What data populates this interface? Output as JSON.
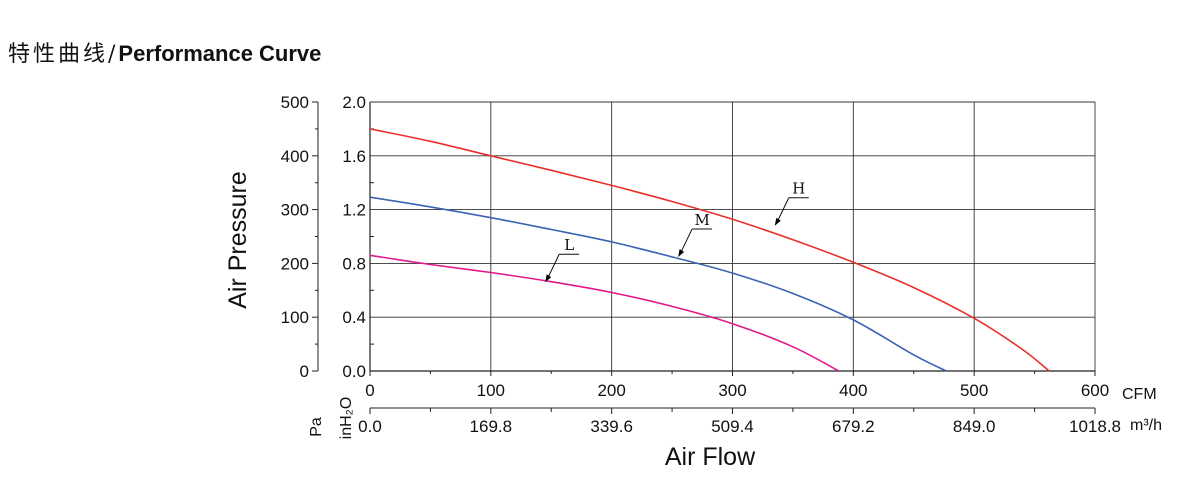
{
  "header": {
    "title_cn": "特性曲线/",
    "title_en": "Performance Curve"
  },
  "chart_data": {
    "type": "line",
    "xlabel": "Air Flow",
    "ylabel": "Air Pressure",
    "x_unit_primary": "CFM",
    "x_unit_secondary": "m³/h",
    "y_unit_left": "Pa",
    "y_unit_inner": "inH₂O",
    "xlim": [
      0,
      600
    ],
    "ylim": [
      0,
      500
    ],
    "x_ticks_cfm": [
      "0",
      "100",
      "200",
      "300",
      "400",
      "500",
      "600"
    ],
    "x_ticks_m3h": [
      "0.0",
      "169.8",
      "339.6",
      "509.4",
      "679.2",
      "849.0",
      "1018.8"
    ],
    "y_ticks_pa": [
      "0",
      "100",
      "200",
      "300",
      "400",
      "500"
    ],
    "y_ticks_inh2o": [
      "0.0",
      "0.4",
      "0.8",
      "1.2",
      "1.6",
      "2.0"
    ],
    "grid": true,
    "series": [
      {
        "name": "H",
        "color": "#e8302a",
        "x": [
          0,
          50,
          100,
          150,
          200,
          250,
          300,
          350,
          400,
          450,
          500,
          540,
          562
        ],
        "y": [
          450,
          427,
          400,
          373,
          345,
          315,
          282,
          244,
          202,
          155,
          98,
          40,
          0
        ]
      },
      {
        "name": "M",
        "color": "#3b63b3",
        "x": [
          0,
          50,
          100,
          150,
          200,
          250,
          300,
          350,
          400,
          450,
          477
        ],
        "y": [
          323,
          305,
          285,
          263,
          240,
          212,
          182,
          144,
          95,
          30,
          0
        ]
      },
      {
        "name": "L",
        "color": "#e0198a",
        "x": [
          0,
          50,
          100,
          150,
          200,
          250,
          300,
          350,
          388
        ],
        "y": [
          215,
          198,
          183,
          166,
          146,
          120,
          88,
          45,
          0
        ]
      }
    ],
    "annotations": [
      {
        "series": "H",
        "label": "H",
        "x": 335,
        "y": 270
      },
      {
        "series": "M",
        "label": "M",
        "x": 255,
        "y": 212
      },
      {
        "series": "L",
        "label": "L",
        "x": 145,
        "y": 165
      }
    ]
  }
}
